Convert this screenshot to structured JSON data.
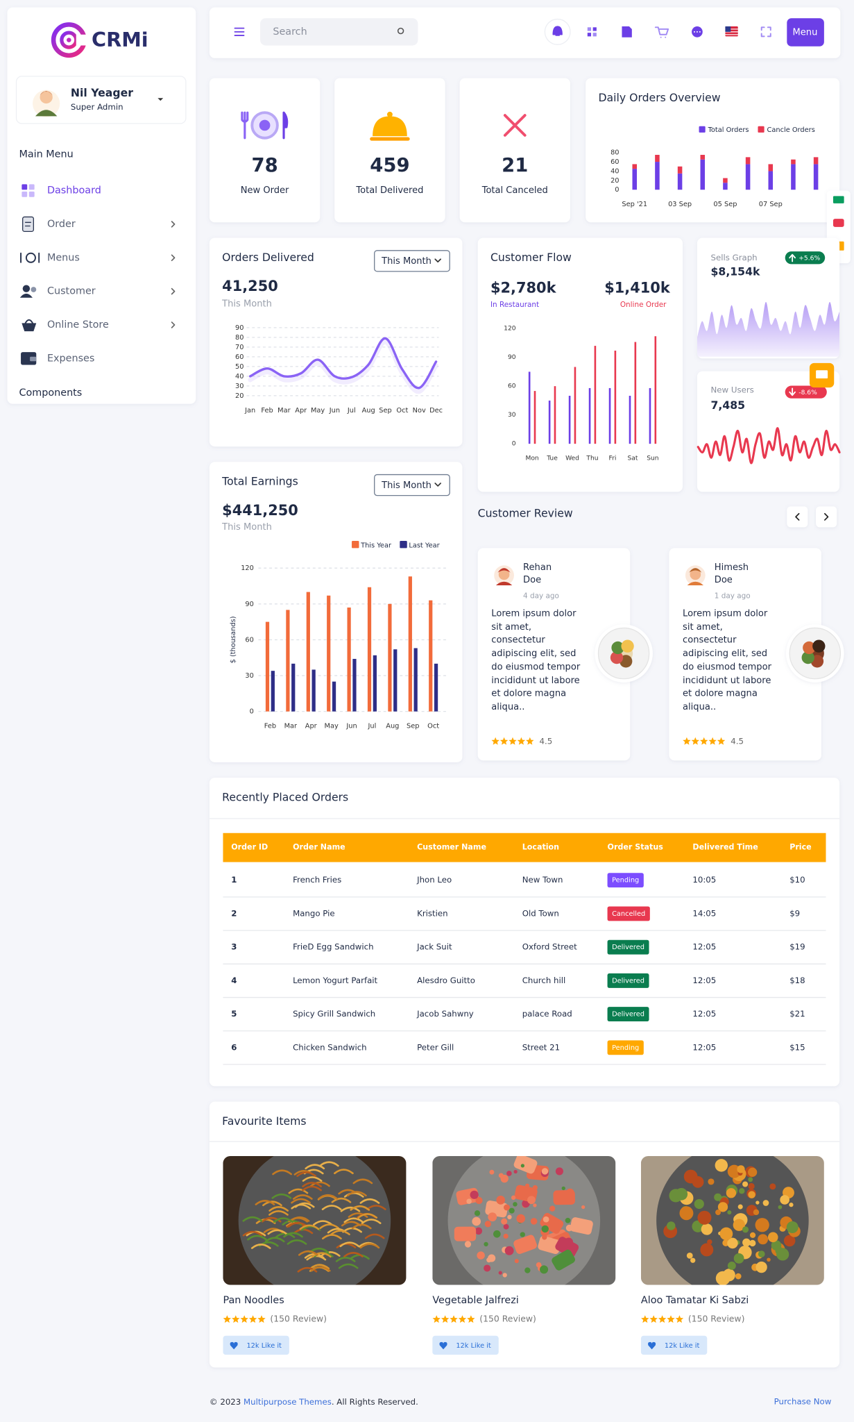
{
  "sidebar": {
    "logo": "CRMi",
    "user_name": "Nil Yeager",
    "user_role": "Super Admin",
    "main_menu": "Main Menu",
    "menu": [
      "Dashboard",
      "Order",
      "Menus",
      "Customer",
      "Online Store",
      "Expenses"
    ],
    "components": "Components"
  },
  "topbar": {
    "search_placeholder": "Search",
    "menu_button": "Menu"
  },
  "stats": [
    {
      "value": 78,
      "label": "New Order"
    },
    {
      "value": 459,
      "label": "Total Delivered"
    },
    {
      "value": 21,
      "label": "Total Canceled"
    }
  ],
  "chart_data": [
    {
      "type": "bar",
      "title": "Daily Orders Overview",
      "stacked": true,
      "categories": [
        "Sep '21",
        null,
        "03 Sep",
        null,
        "05 Sep",
        null,
        "07 Sep",
        null,
        null
      ],
      "series": [
        {
          "name": "Total Orders",
          "color": "#6c3fe6",
          "values": [
            45,
            60,
            35,
            65,
            15,
            55,
            40,
            55,
            55
          ]
        },
        {
          "name": "Cancle Orders",
          "color": "#e8384f",
          "values": [
            10,
            15,
            15,
            10,
            10,
            15,
            15,
            10,
            15
          ]
        }
      ],
      "ylim": [
        0,
        80
      ],
      "yticks": [
        0,
        20,
        40,
        60,
        80
      ],
      "grid": false
    },
    {
      "type": "line",
      "title": "Orders Delivered",
      "dropdown": "This Month",
      "total": "41,250",
      "subtitle": "This Month",
      "categories": [
        "Jan",
        "Feb",
        "Mar",
        "Apr",
        "May",
        "Jun",
        "Jul",
        "Aug",
        "Sep",
        "Oct",
        "Nov",
        "Dec"
      ],
      "values": [
        40,
        48,
        40,
        43,
        57,
        40,
        39,
        52,
        79,
        47,
        28,
        55
      ],
      "color": "#8a63f5",
      "ylim": [
        20,
        90
      ],
      "yticks": [
        20,
        30,
        40,
        50,
        60,
        70,
        80,
        90
      ],
      "grid": true
    },
    {
      "type": "bar",
      "title": "Customer Flow",
      "stacked": false,
      "categories": [
        "Mon",
        "Tue",
        "Wed",
        "Thu",
        "Fri",
        "Sat",
        "Sun"
      ],
      "series": [
        {
          "name": "In Restaurant",
          "total": "$2,780k",
          "color": "#6c3fe6",
          "values": [
            75,
            45,
            50,
            58,
            58,
            50,
            58
          ]
        },
        {
          "name": "Online Order",
          "total": "$1,410k",
          "color": "#e8384f",
          "values": [
            55,
            60,
            80,
            102,
            97,
            106,
            112
          ]
        }
      ],
      "ylim": [
        0,
        120
      ],
      "yticks": [
        0,
        30,
        60,
        90,
        120
      ],
      "grid": false
    },
    {
      "type": "area",
      "title": "Sells Graph",
      "total": "$8,154k",
      "change": "+5.6%",
      "color": "#a98cf3",
      "values": [
        30,
        55,
        40,
        70,
        35,
        65,
        45,
        80,
        50,
        60,
        40,
        75,
        55,
        45,
        85,
        50,
        60,
        40,
        55,
        35,
        70,
        45,
        80,
        60,
        40,
        65,
        50,
        85,
        55,
        70
      ],
      "ylim": [
        0,
        100
      ]
    },
    {
      "type": "line",
      "title": "New Users",
      "total": "7,485",
      "change": "-8.6%",
      "color": "#e8384f",
      "values": [
        50,
        40,
        55,
        30,
        60,
        35,
        70,
        25,
        50,
        80,
        40,
        65,
        20,
        55,
        75,
        30,
        60,
        45,
        85,
        35,
        55,
        25,
        70,
        40,
        60,
        30,
        50,
        65,
        35,
        80,
        45,
        55,
        40
      ],
      "ylim": [
        0,
        100
      ]
    },
    {
      "type": "bar",
      "title": "Total Earnings",
      "dropdown": "This Month",
      "total": "$441,250",
      "subtitle": "This Month",
      "ylabel": "$ (thousands)",
      "stacked": false,
      "categories": [
        "Feb",
        "Mar",
        "Apr",
        "May",
        "Jun",
        "Jul",
        "Aug",
        "Sep",
        "Oct"
      ],
      "series": [
        {
          "name": "This Year",
          "color": "#f26b3a",
          "values": [
            75,
            85,
            100,
            97,
            87,
            104,
            90,
            113,
            93
          ]
        },
        {
          "name": "Last Year",
          "color": "#2e2e87",
          "values": [
            34,
            40,
            35,
            25,
            44,
            47,
            52,
            53,
            40
          ]
        }
      ],
      "ylim": [
        0,
        120
      ],
      "yticks": [
        0,
        30,
        60,
        90,
        120
      ],
      "grid": true
    }
  ],
  "reviews": {
    "title": "Customer Review",
    "items": [
      {
        "name": "Rehan Doe",
        "time": "4 day ago",
        "text": "Lorem ipsum dolor sit amet, consectetur adipiscing elit, sed do eiusmod tempor incididunt ut labore et dolore magna aliqua..",
        "rating": 4.5
      },
      {
        "name": "Himesh Doe",
        "time": "1 day ago",
        "text": "Lorem ipsum dolor sit amet, consectetur adipiscing elit, sed do eiusmod tempor incididunt ut labore et dolore magna aliqua..",
        "rating": 4.5
      }
    ]
  },
  "orders": {
    "title": "Recently Placed Orders",
    "columns": [
      "Order ID",
      "Order Name",
      "Customer Name",
      "Location",
      "Order Status",
      "Delivered Time",
      "Price"
    ],
    "rows": [
      [
        1,
        "French Fries",
        "Jhon Leo",
        "New Town",
        "Pending",
        "10:05",
        "$10"
      ],
      [
        2,
        "Mango Pie",
        "Kristien",
        "Old Town",
        "Cancelled",
        "14:05",
        "$9"
      ],
      [
        3,
        "FrieD Egg Sandwich",
        "Jack Suit",
        "Oxford Street",
        "Delivered",
        "12:05",
        "$19"
      ],
      [
        4,
        "Lemon Yogurt Parfait",
        "Alesdro Guitto",
        "Church hill",
        "Delivered",
        "12:05",
        "$18"
      ],
      [
        5,
        "Spicy Grill Sandwich",
        "Jacob Sahwny",
        "palace Road",
        "Delivered",
        "12:05",
        "$21"
      ],
      [
        6,
        "Chicken Sandwich",
        "Peter Gill",
        "Street 21",
        "Pending",
        "12:05",
        "$15"
      ]
    ],
    "status_colors": [
      "#7c4dff",
      "#e8384f",
      "#0a7d4f",
      "#0a7d4f",
      "#0a7d4f",
      "#ffa800"
    ]
  },
  "favourites": {
    "title": "Favourite Items",
    "items": [
      {
        "name": "Pan Noodles",
        "reviews": "(150 Review)",
        "likes": "12k Like it"
      },
      {
        "name": "Vegetable Jalfrezi",
        "reviews": "(150 Review)",
        "likes": "12k Like it"
      },
      {
        "name": "Aloo Tamatar Ki Sabzi",
        "reviews": "(150 Review)",
        "likes": "12k Like it"
      }
    ]
  },
  "footer": {
    "copyright": "© 2023 ",
    "company": "Multipurpose Themes",
    "rights": ". All Rights Reserved.",
    "link": "Purchase Now"
  }
}
